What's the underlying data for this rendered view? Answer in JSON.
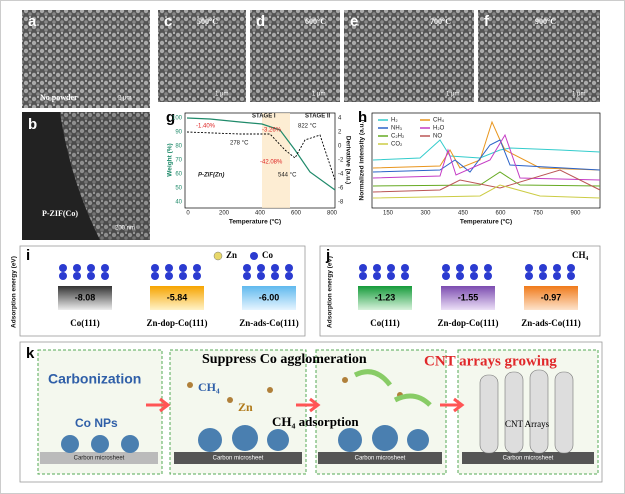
{
  "panels": {
    "a": {
      "label": "a",
      "caption": "No powder",
      "scale": "2 μm"
    },
    "b": {
      "label": "b",
      "caption": "P-ZIF(Co)",
      "scale": "200 nm"
    },
    "c": {
      "label": "c",
      "temp": "500°C",
      "scale": "1 μm"
    },
    "d": {
      "label": "d",
      "temp": "600°C",
      "scale": "1 μm"
    },
    "e": {
      "label": "e",
      "temp": "700°C",
      "scale": "1 μm"
    },
    "f": {
      "label": "f",
      "temp": "900°C",
      "scale": "1 μm"
    },
    "g": {
      "label": "g",
      "y_label": "Weight (%)",
      "y2_label": "Derivative (a.u.)",
      "x_label": "Temperature (°C)",
      "stages": [
        "STAGE I",
        "STAGE II"
      ],
      "annotations": [
        "-1.40%",
        "278 °C",
        "-3.26%",
        "822 °C",
        "-42.08%",
        "544 °C"
      ],
      "legend": "P-ZIF(Zn)",
      "yticks": [
        "100",
        "90",
        "80",
        "70",
        "60",
        "50",
        "40"
      ],
      "y2ticks": [
        "4",
        "2",
        "0",
        "-2",
        "-4",
        "-6",
        "-8"
      ],
      "xticks": [
        "0",
        "200",
        "400",
        "600",
        "800"
      ]
    },
    "h": {
      "label": "h",
      "y_label": "Normalized intensity (a.u.)",
      "x_label": "Temperature (°C)",
      "legend": [
        "H₂",
        "CH₄",
        "NH₃",
        "H₂O",
        "C₂H₂",
        "NO",
        "CO₂"
      ],
      "xticks": [
        "150",
        "300",
        "450",
        "600",
        "750",
        "900"
      ]
    },
    "i": {
      "label": "i",
      "y_label": "Adsorption energy (eV)",
      "legend": [
        "Zn",
        "Co"
      ],
      "items": [
        {
          "value": "-8.08",
          "name": "Co(111)"
        },
        {
          "value": "-5.84",
          "name": "Zn-dop-Co(111)"
        },
        {
          "value": "-6.00",
          "name": "Zn-ads-Co(111)"
        }
      ]
    },
    "j": {
      "label": "j",
      "y_label": "Adsorption energy (eV)",
      "legend": "CH₄",
      "items": [
        {
          "value": "-1.23",
          "name": "Co(111)"
        },
        {
          "value": "-1.55",
          "name": "Zn-dop-Co(111)"
        },
        {
          "value": "-0.97",
          "name": "Zn-ads-Co(111)"
        }
      ]
    },
    "k": {
      "label": "k",
      "carbonization": "Carbonization",
      "co_nps": "Co NPs",
      "suppress": "Suppress Co agglomeration",
      "ch4": "CH₄",
      "zn": "Zn",
      "ch4_adsorption": "CH₄ adsorption",
      "cnt_growing": "CNT arrays growing",
      "cnt_arrays": "CNT Arrays",
      "substrate": [
        "Carbon microsheet",
        "Carbon microsheet",
        "Carbon microsheet",
        "Carbon microsheet"
      ]
    }
  }
}
